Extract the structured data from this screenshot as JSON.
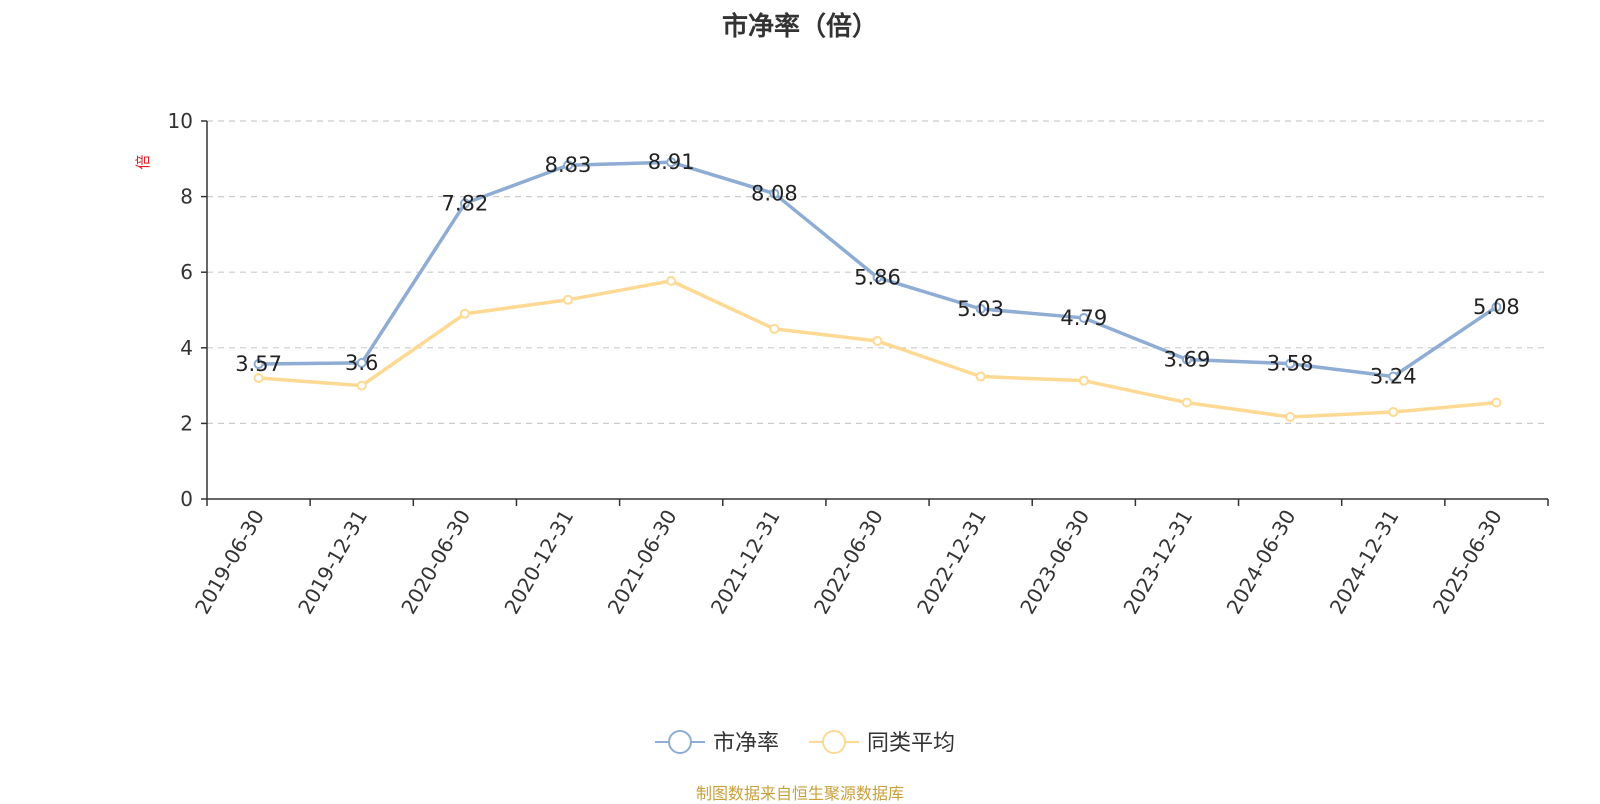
{
  "chart_data": {
    "type": "line",
    "title": "市净率（倍）",
    "ylabel": "倍",
    "ylim": [
      0,
      10
    ],
    "yticks": [
      0,
      2,
      4,
      6,
      8,
      10
    ],
    "grid": "horizontal-dashed",
    "legend_placement": "bottom-center",
    "categories": [
      "2019-06-30",
      "2019-12-31",
      "2020-06-30",
      "2020-12-31",
      "2021-06-30",
      "2021-12-31",
      "2022-06-30",
      "2022-12-31",
      "2023-06-30",
      "2023-12-31",
      "2024-06-30",
      "2024-12-31",
      "2025-06-30"
    ],
    "series": [
      {
        "name": "市净率",
        "color": "#8eacd4",
        "show_labels": true,
        "values": [
          3.57,
          3.6,
          7.82,
          8.83,
          8.91,
          8.08,
          5.86,
          5.03,
          4.79,
          3.69,
          3.58,
          3.24,
          5.08
        ],
        "labels": [
          "3.57",
          "3.6",
          "7.82",
          "8.83",
          "8.91",
          "8.08",
          "5.86",
          "5.03",
          "4.79",
          "3.69",
          "3.58",
          "3.24",
          "5.08"
        ]
      },
      {
        "name": "同类平均",
        "color": "#fdd994",
        "show_labels": false,
        "values": [
          3.2,
          3.0,
          4.9,
          5.27,
          5.77,
          4.5,
          4.18,
          3.24,
          3.13,
          2.55,
          2.17,
          2.3,
          2.55
        ]
      }
    ]
  },
  "source_note": "制图数据来自恒生聚源数据库"
}
